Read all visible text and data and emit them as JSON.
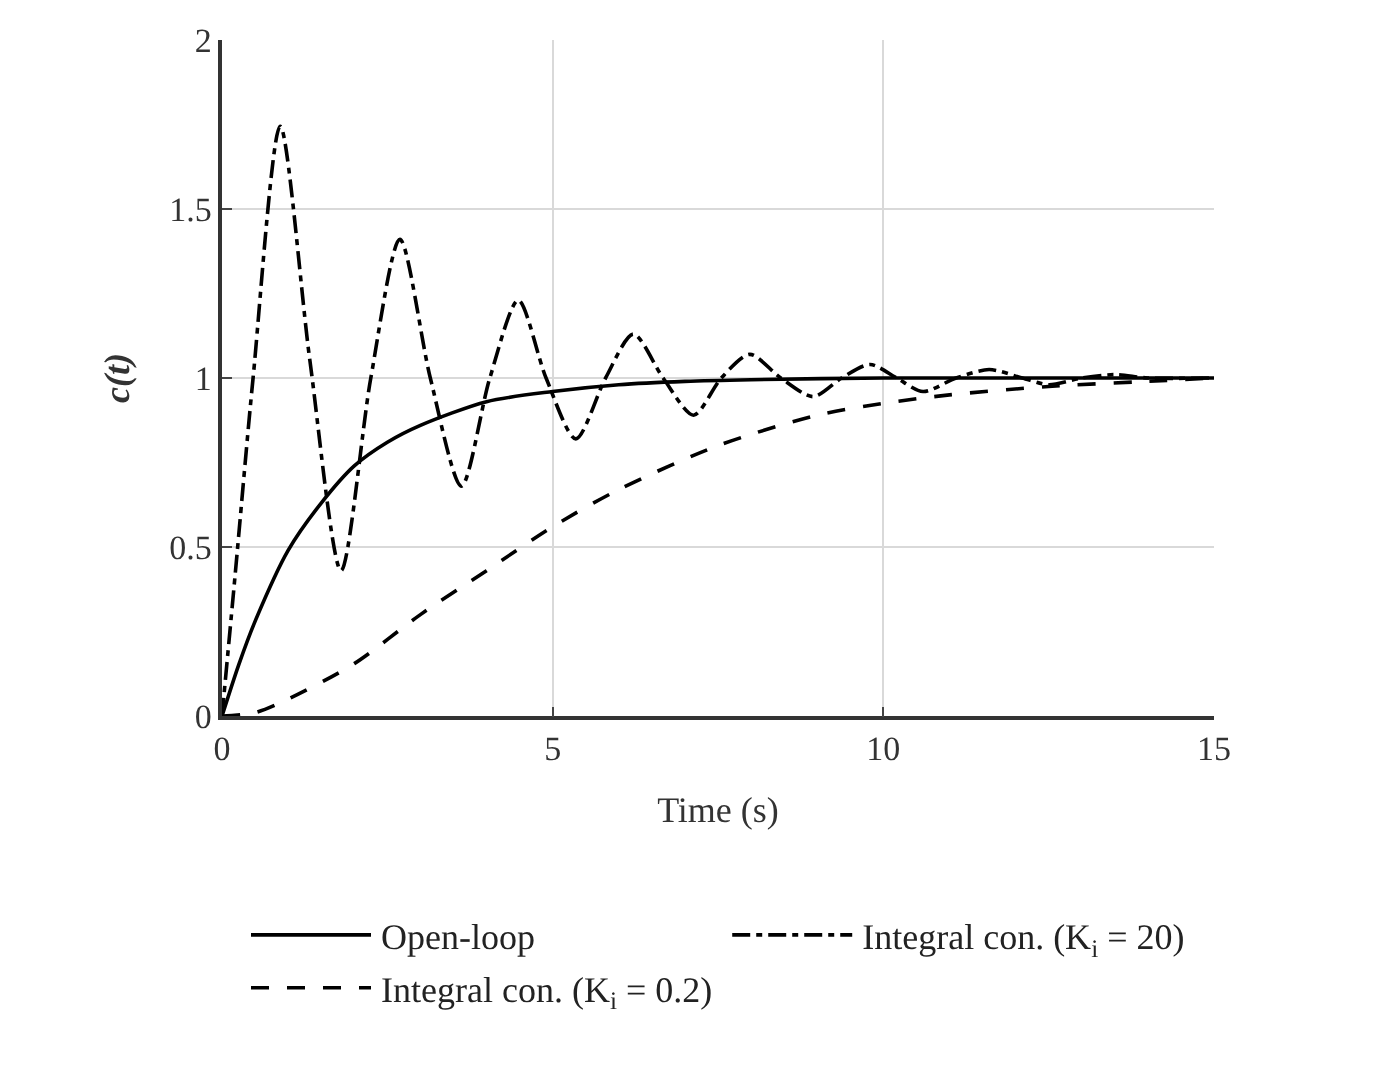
{
  "chart_data": {
    "type": "line",
    "xlabel": "Time (s)",
    "ylabel": "c(t)",
    "xlim": [
      0,
      15
    ],
    "xticks": [
      0,
      5,
      10,
      15
    ],
    "ylim": [
      0,
      2
    ],
    "yticks": [
      0,
      0.5,
      1,
      1.5,
      2
    ],
    "grid": true,
    "legend": "bottom",
    "marker": "none",
    "series": [
      {
        "name": "Open-loop",
        "color": "#000000",
        "line_style": "solid",
        "x": [
          0,
          0.25,
          0.5,
          1,
          1.5,
          2,
          2.5,
          3,
          4,
          5,
          6,
          7,
          8,
          10,
          12,
          15
        ],
        "values": [
          0,
          0.15,
          0.28,
          0.49,
          0.63,
          0.74,
          0.81,
          0.86,
          0.93,
          0.96,
          0.98,
          0.99,
          0.995,
          1,
          1,
          1
        ]
      },
      {
        "name": "Integral con. (K$_{i}$ = 20)",
        "color": "#000000",
        "line_style": "dashdot",
        "x": [
          0,
          0.2,
          0.47,
          0.88,
          1.33,
          1.8,
          2.25,
          2.69,
          3.15,
          3.62,
          4.05,
          4.48,
          4.9,
          5.35,
          5.8,
          6.22,
          6.67,
          7.13,
          7.55,
          7.98,
          8.45,
          8.94,
          9.37,
          9.8,
          10.2,
          10.6,
          11.1,
          11.6,
          12.1,
          12.5,
          13,
          13.5,
          14,
          15
        ],
        "values": [
          0,
          0.42,
          1,
          1.745,
          1.05,
          0.43,
          1,
          1.41,
          1,
          0.68,
          1,
          1.23,
          1,
          0.82,
          1,
          1.13,
          1,
          0.89,
          1,
          1.07,
          1,
          0.945,
          1,
          1.04,
          1,
          0.96,
          1,
          1.025,
          1,
          0.98,
          1,
          1.01,
          1,
          1
        ]
      },
      {
        "name": "Integral con. (K$_{i}$ = 0.2)",
        "color": "#000000",
        "line_style": "dashed",
        "x": [
          0,
          0.5,
          1,
          2,
          3,
          4,
          5,
          6,
          7.5,
          9,
          10,
          11,
          12.5,
          14,
          15
        ],
        "values": [
          0,
          0.01,
          0.05,
          0.155,
          0.3,
          0.43,
          0.56,
          0.67,
          0.8,
          0.89,
          0.925,
          0.95,
          0.975,
          0.99,
          1
        ]
      }
    ]
  }
}
